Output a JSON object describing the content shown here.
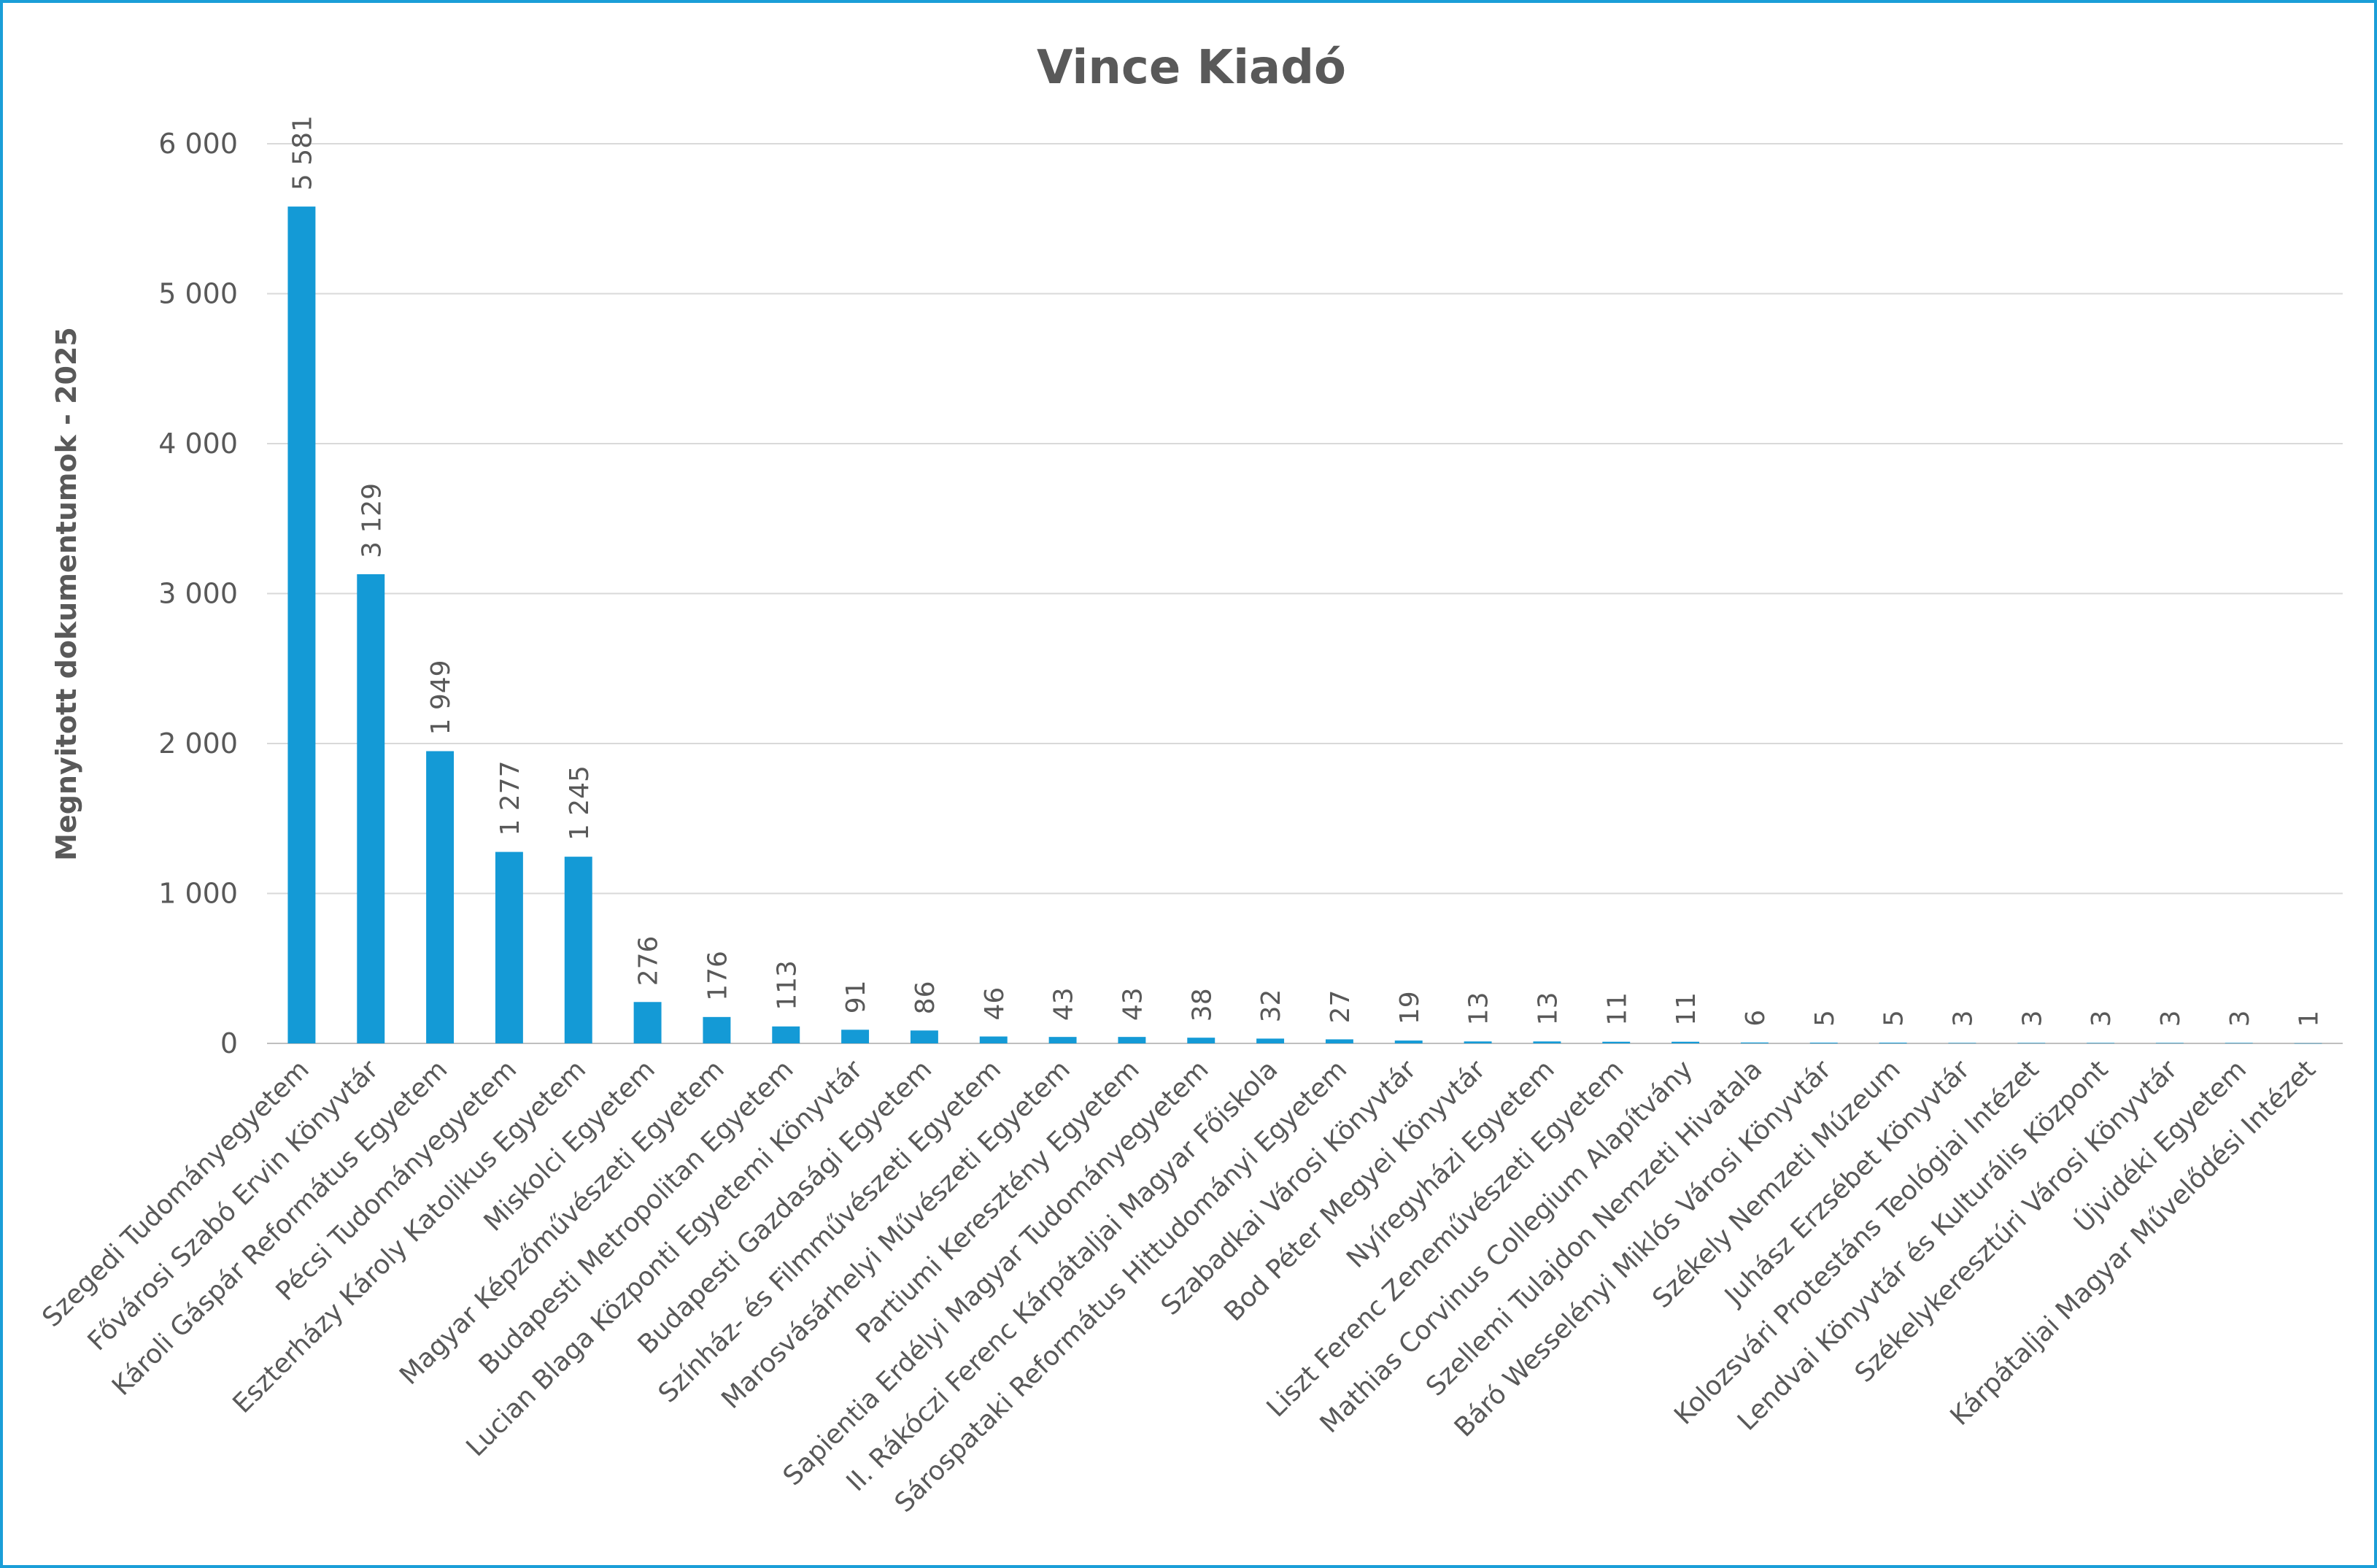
{
  "chart_data": {
    "type": "bar",
    "title": "Vince Kiadó",
    "xlabel": "",
    "ylabel": "Megnyitott dokumentumok - 2025",
    "ylim": [
      0,
      6000
    ],
    "yticks": [
      0,
      1000,
      2000,
      3000,
      4000,
      5000,
      6000
    ],
    "ytick_labels": [
      "0",
      "1 000",
      "2 000",
      "3 000",
      "4 000",
      "5 000",
      "6 000"
    ],
    "grid": true,
    "bar_color": "#149ad6",
    "categories": [
      "Szegedi Tudományegyetem",
      "Fővárosi Szabó Ervin Könyvtár",
      "Károli Gáspár Református Egyetem",
      "Pécsi Tudományegyetem",
      "Eszterházy Károly Katolikus Egyetem",
      "Miskolci Egyetem",
      "Magyar Képzőművészeti Egyetem",
      "Budapesti Metropolitan Egyetem",
      "Lucian Blaga Központi Egyetemi Könyvtár",
      "Budapesti Gazdasági Egyetem",
      "Színház- és Filmművészeti Egyetem",
      "Marosvásárhelyi Művészeti Egyetem",
      "Partiumi Keresztény Egyetem",
      "Sapientia Erdélyi Magyar Tudományegyetem",
      "II. Rákóczi Ferenc Kárpátaljai Magyar Főiskola",
      "Sárospataki Református Hittudományi Egyetem",
      "Szabadkai Városi Könyvtár",
      "Bod Péter Megyei Könyvtár",
      "Nyíregyházi Egyetem",
      "Liszt Ferenc Zeneművészeti Egyetem",
      "Mathias Corvinus Collegium Alapítvány",
      "Szellemi Tulajdon Nemzeti Hivatala",
      "Báró Wesselényi Miklós Városi Könyvtár",
      "Székely Nemzeti Múzeum",
      "Juhász Erzsébet Könyvtár",
      "Kolozsvári Protestáns Teológiai Intézet",
      "Lendvai Könyvtár és Kulturális Központ",
      "Székelykeresztúri Városi Könyvtár",
      "Újvidéki Egyetem",
      "Kárpátaljai Magyar Művelődési Intézet"
    ],
    "values": [
      5581,
      3129,
      1949,
      1277,
      1245,
      276,
      176,
      113,
      91,
      86,
      46,
      43,
      43,
      38,
      32,
      27,
      19,
      13,
      13,
      11,
      11,
      6,
      5,
      5,
      3,
      3,
      3,
      3,
      3,
      1
    ],
    "data_labels": [
      "5 581",
      "3 129",
      "1 949",
      "1 277",
      "1 245",
      "276",
      "176",
      "113",
      "91",
      "86",
      "46",
      "43",
      "43",
      "38",
      "32",
      "27",
      "19",
      "13",
      "13",
      "11",
      "11",
      "6",
      "5",
      "5",
      "3",
      "3",
      "3",
      "3",
      "3",
      "1"
    ]
  }
}
